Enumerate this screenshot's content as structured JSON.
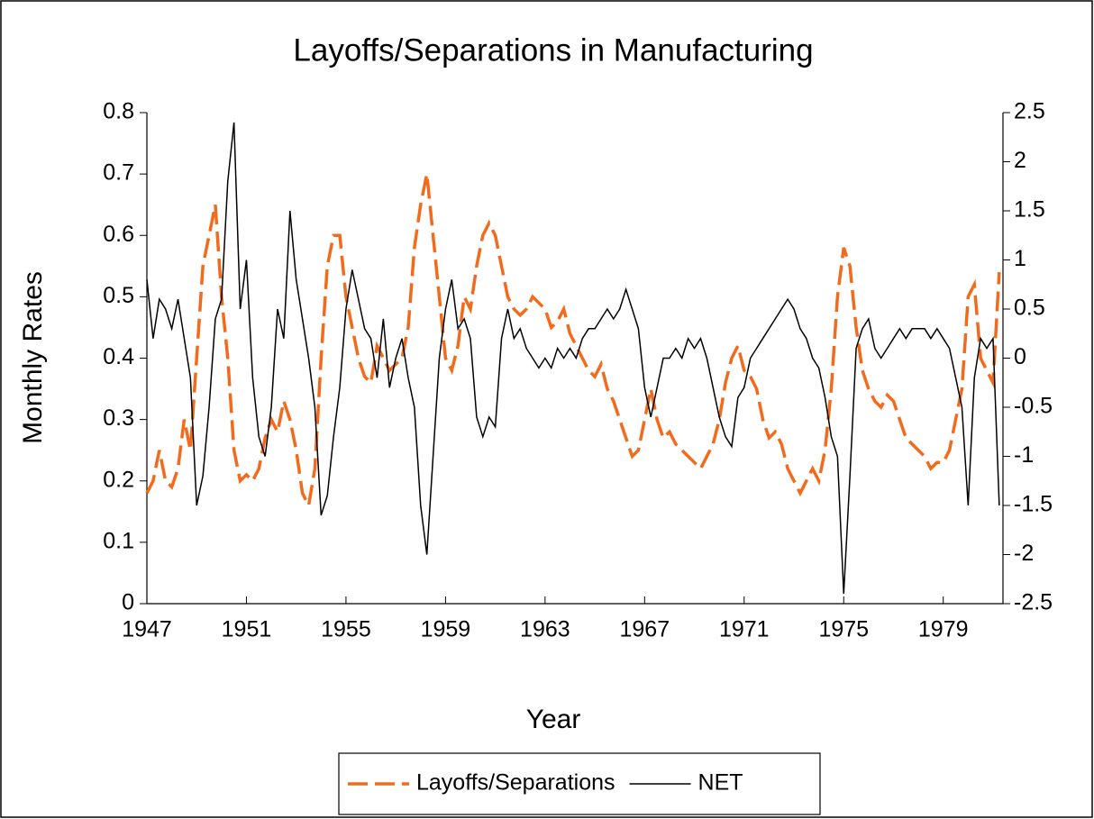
{
  "chart_data": {
    "type": "line",
    "title": "Layoffs/Separations in Manufacturing",
    "xlabel": "Year",
    "ylabel": "Monthly Rates",
    "x": [
      1947,
      1947.25,
      1947.5,
      1947.75,
      1948,
      1948.25,
      1948.5,
      1948.75,
      1949,
      1949.25,
      1949.5,
      1949.75,
      1950,
      1950.25,
      1950.5,
      1950.75,
      1951,
      1951.25,
      1951.5,
      1951.75,
      1952,
      1952.25,
      1952.5,
      1952.75,
      1953,
      1953.25,
      1953.5,
      1953.75,
      1954,
      1954.25,
      1954.5,
      1954.75,
      1955,
      1955.25,
      1955.5,
      1955.75,
      1956,
      1956.25,
      1956.5,
      1956.75,
      1957,
      1957.25,
      1957.5,
      1957.75,
      1958,
      1958.25,
      1958.5,
      1958.75,
      1959,
      1959.25,
      1959.5,
      1959.75,
      1960,
      1960.25,
      1960.5,
      1960.75,
      1961,
      1961.25,
      1961.5,
      1961.75,
      1962,
      1962.25,
      1962.5,
      1962.75,
      1963,
      1963.25,
      1963.5,
      1963.75,
      1964,
      1964.25,
      1964.5,
      1964.75,
      1965,
      1965.25,
      1965.5,
      1965.75,
      1966,
      1966.25,
      1966.5,
      1966.75,
      1967,
      1967.25,
      1967.5,
      1967.75,
      1968,
      1968.25,
      1968.5,
      1968.75,
      1969,
      1969.25,
      1969.5,
      1969.75,
      1970,
      1970.25,
      1970.5,
      1970.75,
      1971,
      1971.25,
      1971.5,
      1971.75,
      1972,
      1972.25,
      1972.5,
      1972.75,
      1973,
      1973.25,
      1973.5,
      1973.75,
      1974,
      1974.25,
      1974.5,
      1974.75,
      1975,
      1975.25,
      1975.5,
      1975.75,
      1976,
      1976.25,
      1976.5,
      1976.75,
      1977,
      1977.25,
      1977.5,
      1977.75,
      1978,
      1978.25,
      1978.5,
      1978.75,
      1979,
      1979.25,
      1979.5,
      1979.75,
      1980,
      1980.25,
      1980.5,
      1980.75,
      1981,
      1981.25
    ],
    "series": [
      {
        "name": "Layoffs/Separations",
        "color": "#f26b1d",
        "dash": true,
        "axis": "y",
        "values": [
          0.18,
          0.2,
          0.25,
          0.2,
          0.19,
          0.22,
          0.3,
          0.25,
          0.4,
          0.55,
          0.6,
          0.65,
          0.5,
          0.4,
          0.25,
          0.2,
          0.21,
          0.2,
          0.22,
          0.27,
          0.3,
          0.28,
          0.33,
          0.3,
          0.25,
          0.18,
          0.16,
          0.22,
          0.4,
          0.55,
          0.6,
          0.6,
          0.5,
          0.45,
          0.4,
          0.37,
          0.36,
          0.42,
          0.4,
          0.38,
          0.39,
          0.4,
          0.45,
          0.58,
          0.65,
          0.7,
          0.6,
          0.5,
          0.4,
          0.38,
          0.42,
          0.5,
          0.48,
          0.55,
          0.6,
          0.62,
          0.6,
          0.55,
          0.5,
          0.48,
          0.47,
          0.48,
          0.5,
          0.49,
          0.48,
          0.45,
          0.46,
          0.48,
          0.44,
          0.42,
          0.4,
          0.38,
          0.37,
          0.39,
          0.35,
          0.33,
          0.3,
          0.27,
          0.24,
          0.25,
          0.3,
          0.35,
          0.3,
          0.27,
          0.28,
          0.26,
          0.25,
          0.24,
          0.23,
          0.22,
          0.24,
          0.26,
          0.3,
          0.36,
          0.4,
          0.42,
          0.38,
          0.37,
          0.35,
          0.3,
          0.27,
          0.28,
          0.26,
          0.22,
          0.2,
          0.18,
          0.2,
          0.22,
          0.2,
          0.25,
          0.35,
          0.5,
          0.58,
          0.55,
          0.45,
          0.38,
          0.35,
          0.33,
          0.32,
          0.34,
          0.33,
          0.3,
          0.27,
          0.26,
          0.25,
          0.24,
          0.22,
          0.23,
          0.23,
          0.25,
          0.3,
          0.35,
          0.5,
          0.52,
          0.4,
          0.38,
          0.36,
          0.54
        ]
      },
      {
        "name": "NET",
        "color": "#000000",
        "dash": false,
        "axis": "y2",
        "values": [
          0.8,
          0.2,
          0.6,
          0.5,
          0.3,
          0.6,
          0.2,
          -0.2,
          -1.5,
          -1.2,
          -0.5,
          0.4,
          0.6,
          1.8,
          2.4,
          0.5,
          1.0,
          -0.2,
          -0.8,
          -1.0,
          -0.5,
          0.5,
          0.2,
          1.5,
          0.8,
          0.4,
          0,
          -0.5,
          -1.6,
          -1.4,
          -0.8,
          -0.3,
          0.5,
          0.9,
          0.6,
          0.3,
          0.2,
          -0.2,
          0.4,
          -0.3,
          0,
          0.2,
          -0.2,
          -0.5,
          -1.5,
          -2.0,
          -1.0,
          0,
          0.5,
          0.8,
          0.3,
          0.4,
          0.2,
          -0.6,
          -0.8,
          -0.6,
          -0.7,
          0.2,
          0.5,
          0.2,
          0.3,
          0.1,
          0.0,
          -0.1,
          0.0,
          -0.1,
          0.1,
          0.0,
          0.1,
          0.0,
          0.2,
          0.3,
          0.3,
          0.4,
          0.5,
          0.4,
          0.5,
          0.7,
          0.5,
          0.3,
          -0.3,
          -0.6,
          -0.3,
          0.0,
          0.0,
          0.1,
          0.0,
          0.2,
          0.1,
          0.2,
          0.0,
          -0.3,
          -0.6,
          -0.8,
          -0.9,
          -0.4,
          -0.3,
          0.0,
          0.1,
          0.2,
          0.3,
          0.4,
          0.5,
          0.6,
          0.5,
          0.3,
          0.2,
          0.0,
          -0.1,
          -0.4,
          -0.8,
          -1.0,
          -2.4,
          -1.2,
          0.1,
          0.3,
          0.4,
          0.1,
          0.0,
          0.1,
          0.2,
          0.3,
          0.2,
          0.3,
          0.3,
          0.3,
          0.2,
          0.3,
          0.2,
          0.1,
          -0.2,
          -0.5,
          -1.5,
          -0.2,
          0.2,
          0.1,
          0.2,
          -1.5
        ]
      }
    ],
    "xlim": [
      1947,
      1981.4
    ],
    "xticks": [
      1947,
      1951,
      1955,
      1959,
      1963,
      1967,
      1971,
      1975,
      1979
    ],
    "ylim": [
      0,
      0.8
    ],
    "yticks": [
      0,
      0.1,
      0.2,
      0.3,
      0.4,
      0.5,
      0.6,
      0.7,
      0.8
    ],
    "y2lim": [
      -2.5,
      2.5
    ],
    "y2ticks": [
      -2.5,
      -2,
      -1.5,
      -1,
      -0.5,
      0,
      0.5,
      1,
      1.5,
      2,
      2.5
    ],
    "grid": false,
    "legend": "bottom"
  }
}
